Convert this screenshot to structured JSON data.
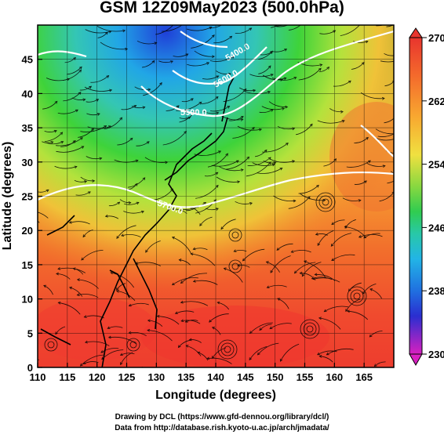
{
  "title": "GSM 12Z09May2023 (500.0hPa)",
  "x_axis": {
    "label": "Longitude (degrees)",
    "ticks": [
      "110",
      "115",
      "120",
      "125",
      "130",
      "135",
      "140",
      "145",
      "150",
      "155",
      "160",
      "165"
    ]
  },
  "y_axis": {
    "label": "Latitude  (degrees)",
    "ticks": [
      "0",
      "5",
      "10",
      "15",
      "20",
      "25",
      "30",
      "35",
      "40",
      "45"
    ]
  },
  "colorbar": {
    "ticks": [
      "270",
      "262",
      "254",
      "246",
      "238",
      "230"
    ]
  },
  "contour_labels": [
    "5700.0",
    "5500.0",
    "5400.0",
    "5600.0"
  ],
  "credits": [
    "Drawing by DCL (https://www.gfd-dennou.org/library/dcl/)",
    "Data from http://database.rish.kyoto-u.ac.jp/arch/jmadata/"
  ],
  "map": {
    "lon_range": [
      110,
      170
    ],
    "lat_range": [
      0,
      50
    ],
    "temperature_range_K": [
      230,
      270
    ],
    "colors": {
      "warm": "#f04030",
      "orange": "#f89030",
      "yellow": "#f0e040",
      "green": "#40d040",
      "cyan": "#20b8e8",
      "blue": "#2050e0",
      "magenta": "#e020c8"
    }
  }
}
